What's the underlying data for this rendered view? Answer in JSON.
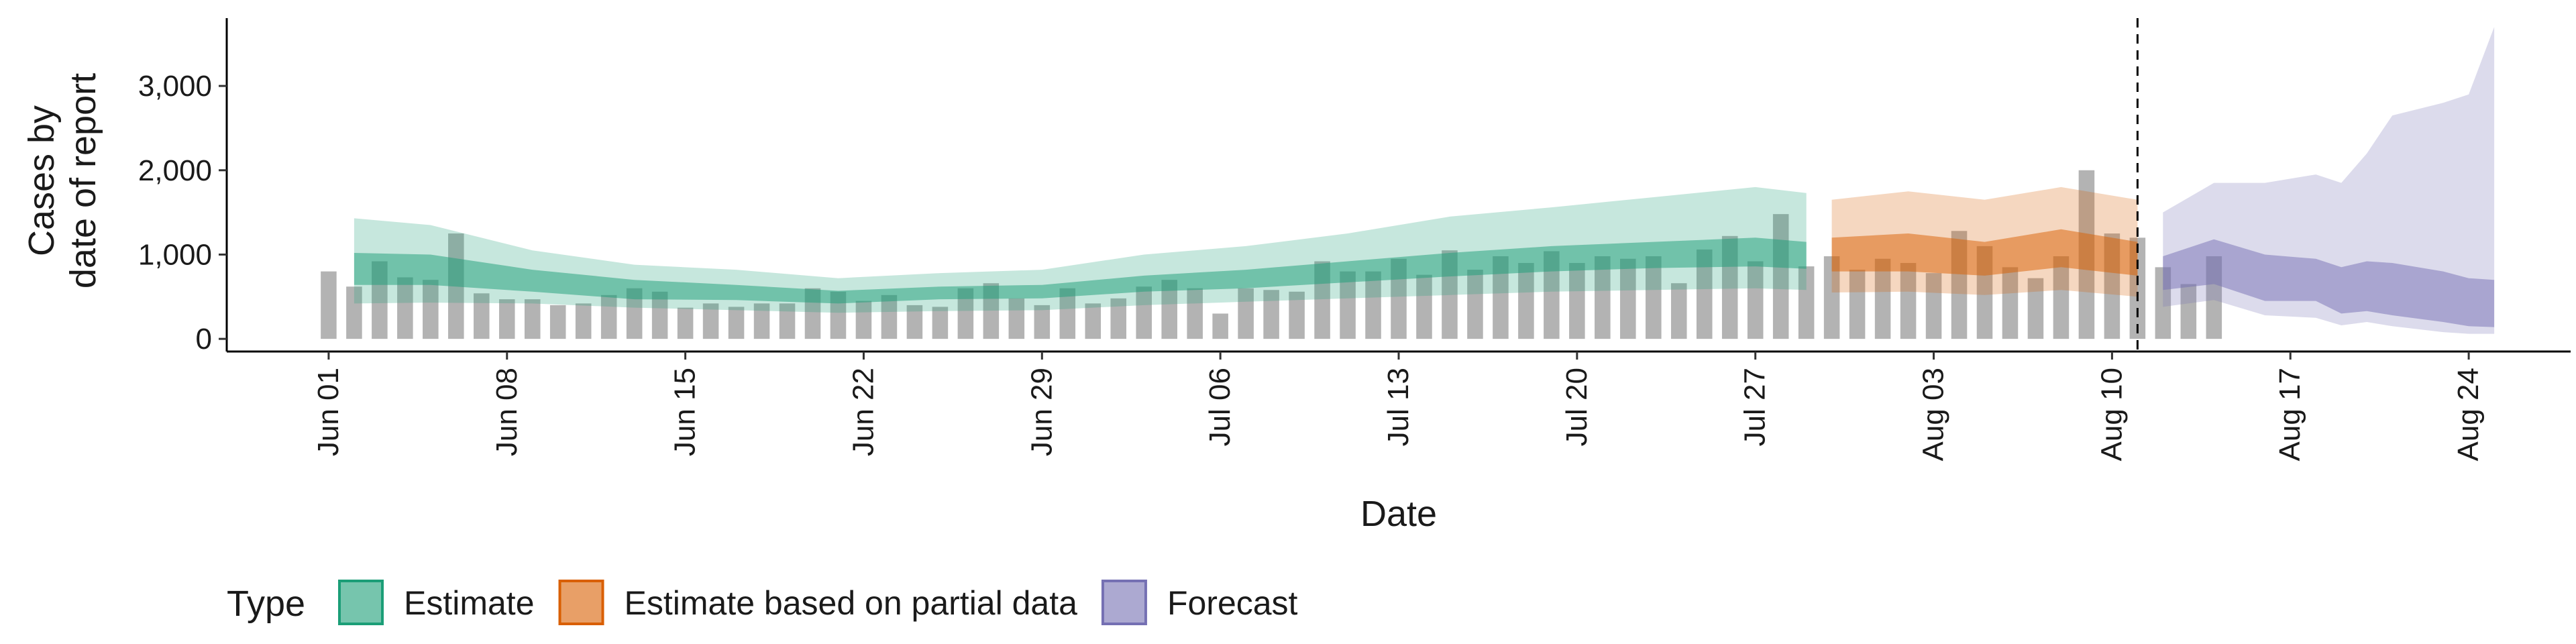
{
  "chart_data": {
    "type": "area",
    "xlabel": "Date",
    "ylabel_lines": [
      "Cases by",
      "date of report"
    ],
    "x_range": [
      "2020-05-28",
      "2020-08-28"
    ],
    "y_range": [
      -150,
      3900
    ],
    "y_ticks": [
      {
        "value": 0,
        "label": "0"
      },
      {
        "value": 1000,
        "label": "1,000"
      },
      {
        "value": 2000,
        "label": "2,000"
      },
      {
        "value": 3000,
        "label": "3,000"
      }
    ],
    "x_ticks": [
      {
        "date": "2020-06-01",
        "label": "Jun 01"
      },
      {
        "date": "2020-06-08",
        "label": "Jun 08"
      },
      {
        "date": "2020-06-15",
        "label": "Jun 15"
      },
      {
        "date": "2020-06-22",
        "label": "Jun 22"
      },
      {
        "date": "2020-06-29",
        "label": "Jun 29"
      },
      {
        "date": "2020-07-06",
        "label": "Jul 06"
      },
      {
        "date": "2020-07-13",
        "label": "Jul 13"
      },
      {
        "date": "2020-07-20",
        "label": "Jul 20"
      },
      {
        "date": "2020-07-27",
        "label": "Jul 27"
      },
      {
        "date": "2020-08-03",
        "label": "Aug 03"
      },
      {
        "date": "2020-08-10",
        "label": "Aug 10"
      },
      {
        "date": "2020-08-17",
        "label": "Aug 17"
      },
      {
        "date": "2020-08-24",
        "label": "Aug 24"
      }
    ],
    "vline_date": "2020-08-11",
    "reported_cases": {
      "start_date": "2020-06-01",
      "color": "#b3b3b3",
      "values": [
        800,
        620,
        920,
        730,
        700,
        1250,
        540,
        470,
        470,
        400,
        420,
        520,
        600,
        560,
        370,
        420,
        380,
        420,
        420,
        600,
        560,
        450,
        520,
        400,
        380,
        600,
        660,
        480,
        400,
        600,
        420,
        480,
        620,
        700,
        600,
        300,
        600,
        580,
        560,
        920,
        800,
        800,
        950,
        760,
        1050,
        820,
        980,
        900,
        1040,
        900,
        980,
        950,
        980,
        660,
        1060,
        1220,
        920,
        1480,
        860,
        980,
        820,
        950,
        900,
        780,
        1280,
        1100,
        850,
        720,
        980,
        2000,
        1250,
        1200,
        850,
        650,
        980
      ]
    },
    "legend": {
      "title": "Type",
      "position": "bottom",
      "entries": [
        {
          "label": "Estimate",
          "color": "#1b9e77"
        },
        {
          "label": "Estimate based on partial data",
          "color": "#d95f02"
        },
        {
          "label": "Forecast",
          "color": "#7570b3"
        }
      ]
    },
    "series": [
      {
        "name": "Estimate",
        "color": "#1b9e77",
        "dates": [
          "2020-06-02",
          "2020-06-05",
          "2020-06-09",
          "2020-06-13",
          "2020-06-17",
          "2020-06-21",
          "2020-06-25",
          "2020-06-29",
          "2020-07-03",
          "2020-07-07",
          "2020-07-11",
          "2020-07-15",
          "2020-07-19",
          "2020-07-23",
          "2020-07-27",
          "2020-07-29"
        ],
        "outer_upper": [
          1430,
          1350,
          1050,
          880,
          820,
          720,
          780,
          820,
          1000,
          1100,
          1250,
          1450,
          1560,
          1680,
          1800,
          1730
        ],
        "inner_upper": [
          1020,
          1000,
          820,
          700,
          640,
          570,
          620,
          640,
          750,
          820,
          920,
          1020,
          1100,
          1150,
          1200,
          1150
        ],
        "inner_lower": [
          640,
          640,
          560,
          470,
          460,
          420,
          470,
          480,
          560,
          600,
          670,
          740,
          800,
          840,
          860,
          830
        ],
        "outer_lower": [
          420,
          430,
          420,
          370,
          340,
          310,
          330,
          340,
          400,
          440,
          480,
          520,
          560,
          580,
          600,
          580
        ]
      },
      {
        "name": "Estimate based on partial data",
        "color": "#d95f02",
        "dates": [
          "2020-07-30",
          "2020-08-02",
          "2020-08-05",
          "2020-08-08",
          "2020-08-11"
        ],
        "outer_upper": [
          1650,
          1750,
          1650,
          1800,
          1650
        ],
        "inner_upper": [
          1200,
          1250,
          1150,
          1300,
          1150
        ],
        "inner_lower": [
          800,
          800,
          750,
          850,
          750
        ],
        "outer_lower": [
          550,
          560,
          520,
          580,
          500
        ]
      },
      {
        "name": "Forecast",
        "color": "#7570b3",
        "dates": [
          "2020-08-12",
          "2020-08-14",
          "2020-08-16",
          "2020-08-18",
          "2020-08-19",
          "2020-08-20",
          "2020-08-21",
          "2020-08-23",
          "2020-08-24",
          "2020-08-25"
        ],
        "outer_upper": [
          1500,
          1850,
          1850,
          1950,
          1850,
          2200,
          2650,
          2800,
          2900,
          3700
        ],
        "inner_upper": [
          980,
          1180,
          1000,
          950,
          850,
          920,
          900,
          800,
          720,
          700
        ],
        "inner_lower": [
          580,
          650,
          450,
          450,
          300,
          330,
          280,
          200,
          150,
          140
        ],
        "outer_lower": [
          380,
          460,
          280,
          250,
          160,
          200,
          150,
          80,
          60,
          60
        ]
      }
    ]
  }
}
